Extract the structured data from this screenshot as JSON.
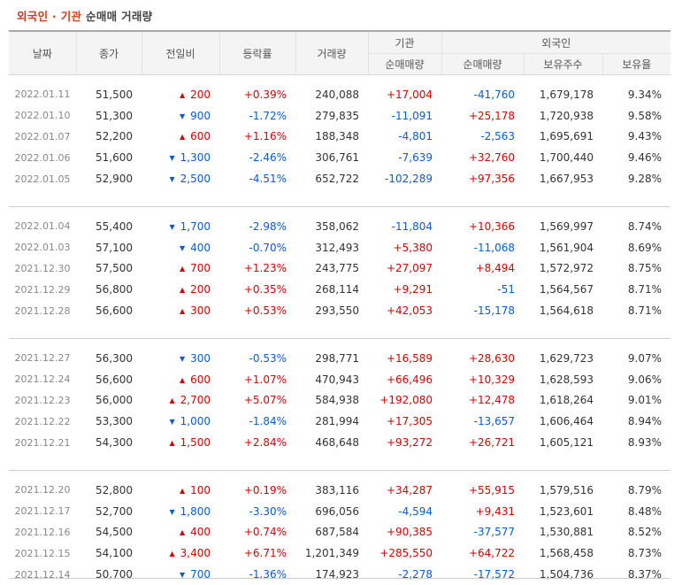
{
  "title": {
    "part1": "외국인 · 기관",
    "part2": "순매매 거래량"
  },
  "header": {
    "date": "날짜",
    "close": "종가",
    "change": "전일비",
    "rate": "등락률",
    "volume": "거래량",
    "institution": "기관",
    "foreign": "외국인",
    "net_buy": "순매매량",
    "holdings": "보유주수",
    "ratio": "보유율"
  },
  "colors": {
    "up": "#d60000",
    "down": "#0b5bd4",
    "title_accent": "#d0391d"
  },
  "groups": [
    {
      "rows": [
        {
          "date": "2022.01.11",
          "close": "51,500",
          "dir": "up",
          "change": "200",
          "rate": "+0.39%",
          "volume": "240,088",
          "inst": "+17,004",
          "foreign": "-41,760",
          "holdings": "1,679,178",
          "ratio": "9.34%"
        },
        {
          "date": "2022.01.10",
          "close": "51,300",
          "dir": "down",
          "change": "900",
          "rate": "-1.72%",
          "volume": "279,835",
          "inst": "-11,091",
          "foreign": "+25,178",
          "holdings": "1,720,938",
          "ratio": "9.58%"
        },
        {
          "date": "2022.01.07",
          "close": "52,200",
          "dir": "up",
          "change": "600",
          "rate": "+1.16%",
          "volume": "188,348",
          "inst": "-4,801",
          "foreign": "-2,563",
          "holdings": "1,695,691",
          "ratio": "9.43%"
        },
        {
          "date": "2022.01.06",
          "close": "51,600",
          "dir": "down",
          "change": "1,300",
          "rate": "-2.46%",
          "volume": "306,761",
          "inst": "-7,639",
          "foreign": "+32,760",
          "holdings": "1,700,440",
          "ratio": "9.46%"
        },
        {
          "date": "2022.01.05",
          "close": "52,900",
          "dir": "down",
          "change": "2,500",
          "rate": "-4.51%",
          "volume": "652,722",
          "inst": "-102,289",
          "foreign": "+97,356",
          "holdings": "1,667,953",
          "ratio": "9.28%"
        }
      ]
    },
    {
      "rows": [
        {
          "date": "2022.01.04",
          "close": "55,400",
          "dir": "down",
          "change": "1,700",
          "rate": "-2.98%",
          "volume": "358,062",
          "inst": "-11,804",
          "foreign": "+10,366",
          "holdings": "1,569,997",
          "ratio": "8.74%"
        },
        {
          "date": "2022.01.03",
          "close": "57,100",
          "dir": "down",
          "change": "400",
          "rate": "-0.70%",
          "volume": "312,493",
          "inst": "+5,380",
          "foreign": "-11,068",
          "holdings": "1,561,904",
          "ratio": "8.69%"
        },
        {
          "date": "2021.12.30",
          "close": "57,500",
          "dir": "up",
          "change": "700",
          "rate": "+1.23%",
          "volume": "243,775",
          "inst": "+27,097",
          "foreign": "+8,494",
          "holdings": "1,572,972",
          "ratio": "8.75%"
        },
        {
          "date": "2021.12.29",
          "close": "56,800",
          "dir": "up",
          "change": "200",
          "rate": "+0.35%",
          "volume": "268,114",
          "inst": "+9,291",
          "foreign": "-51",
          "holdings": "1,564,567",
          "ratio": "8.71%"
        },
        {
          "date": "2021.12.28",
          "close": "56,600",
          "dir": "up",
          "change": "300",
          "rate": "+0.53%",
          "volume": "293,550",
          "inst": "+42,053",
          "foreign": "-15,178",
          "holdings": "1,564,618",
          "ratio": "8.71%"
        }
      ]
    },
    {
      "rows": [
        {
          "date": "2021.12.27",
          "close": "56,300",
          "dir": "down",
          "change": "300",
          "rate": "-0.53%",
          "volume": "298,771",
          "inst": "+16,589",
          "foreign": "+28,630",
          "holdings": "1,629,723",
          "ratio": "9.07%"
        },
        {
          "date": "2021.12.24",
          "close": "56,600",
          "dir": "up",
          "change": "600",
          "rate": "+1.07%",
          "volume": "470,943",
          "inst": "+66,496",
          "foreign": "+10,329",
          "holdings": "1,628,593",
          "ratio": "9.06%"
        },
        {
          "date": "2021.12.23",
          "close": "56,000",
          "dir": "up",
          "change": "2,700",
          "rate": "+5.07%",
          "volume": "584,938",
          "inst": "+192,080",
          "foreign": "+12,478",
          "holdings": "1,618,264",
          "ratio": "9.01%"
        },
        {
          "date": "2021.12.22",
          "close": "53,300",
          "dir": "down",
          "change": "1,000",
          "rate": "-1.84%",
          "volume": "281,994",
          "inst": "+17,305",
          "foreign": "-13,657",
          "holdings": "1,606,464",
          "ratio": "8.94%"
        },
        {
          "date": "2021.12.21",
          "close": "54,300",
          "dir": "up",
          "change": "1,500",
          "rate": "+2.84%",
          "volume": "468,648",
          "inst": "+93,272",
          "foreign": "+26,721",
          "holdings": "1,605,121",
          "ratio": "8.93%"
        }
      ]
    },
    {
      "rows": [
        {
          "date": "2021.12.20",
          "close": "52,800",
          "dir": "up",
          "change": "100",
          "rate": "+0.19%",
          "volume": "383,116",
          "inst": "+34,287",
          "foreign": "+55,915",
          "holdings": "1,579,516",
          "ratio": "8.79%"
        },
        {
          "date": "2021.12.17",
          "close": "52,700",
          "dir": "down",
          "change": "1,800",
          "rate": "-3.30%",
          "volume": "696,056",
          "inst": "-4,594",
          "foreign": "+9,431",
          "holdings": "1,523,601",
          "ratio": "8.48%"
        },
        {
          "date": "2021.12.16",
          "close": "54,500",
          "dir": "up",
          "change": "400",
          "rate": "+0.74%",
          "volume": "687,584",
          "inst": "+90,385",
          "foreign": "-37,577",
          "holdings": "1,530,881",
          "ratio": "8.52%"
        },
        {
          "date": "2021.12.15",
          "close": "54,100",
          "dir": "up",
          "change": "3,400",
          "rate": "+6.71%",
          "volume": "1,201,349",
          "inst": "+285,550",
          "foreign": "+64,722",
          "holdings": "1,568,458",
          "ratio": "8.73%"
        },
        {
          "date": "2021.12.14",
          "close": "50,700",
          "dir": "down",
          "change": "700",
          "rate": "-1.36%",
          "volume": "174,923",
          "inst": "-2,278",
          "foreign": "-17,572",
          "holdings": "1,504,736",
          "ratio": "8.37%"
        }
      ]
    }
  ]
}
